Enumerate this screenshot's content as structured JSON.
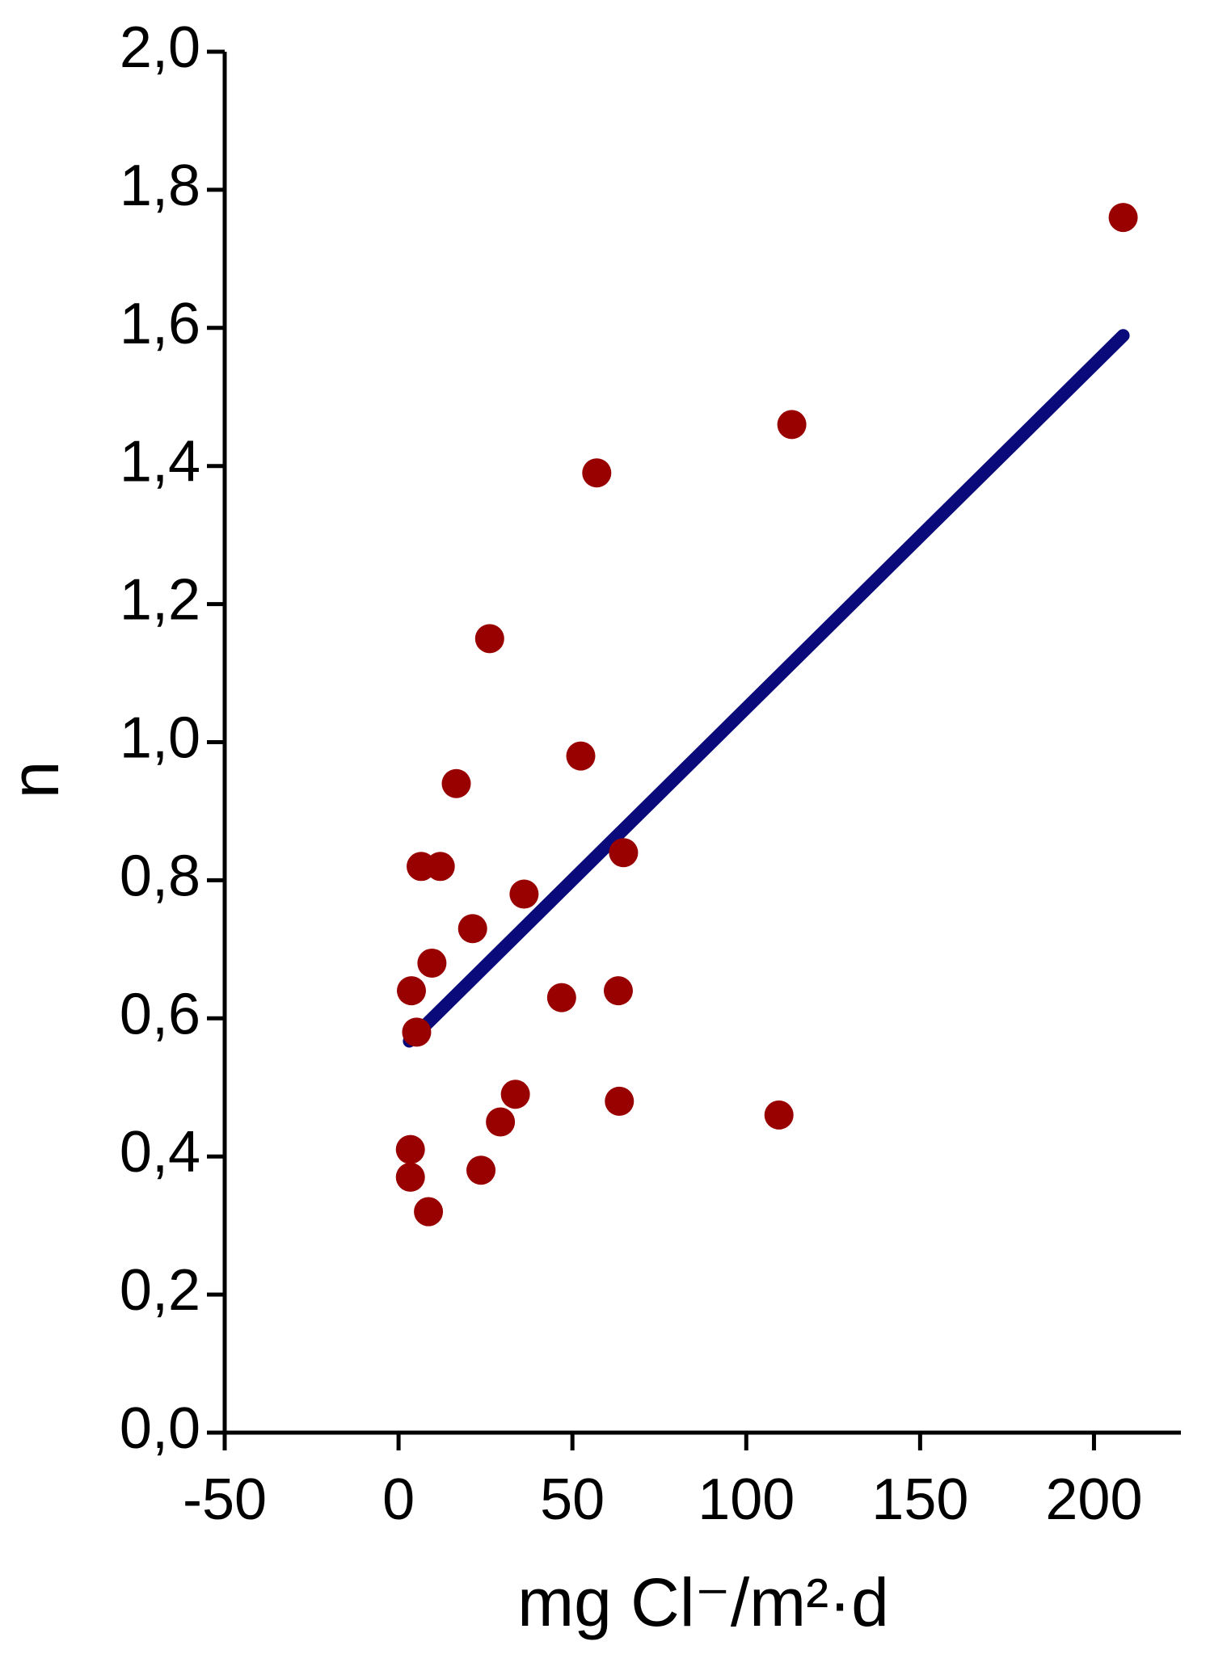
{
  "chart_data": {
    "type": "scatter",
    "xlabel": "mg Cl⁻/m²·d",
    "ylabel": "n",
    "xlim": [
      -50,
      225
    ],
    "ylim": [
      0,
      2.0
    ],
    "xticks": [
      -50,
      0,
      50,
      100,
      150,
      200
    ],
    "yticks": [
      {
        "value": 0,
        "label": "0,0"
      },
      {
        "value": 0.2,
        "label": "0,2"
      },
      {
        "value": 0.4,
        "label": "0,4"
      },
      {
        "value": 0.6,
        "label": "0,6"
      },
      {
        "value": 0.8,
        "label": "0,8"
      },
      {
        "value": 1.0,
        "label": "1,0"
      },
      {
        "value": 1.2,
        "label": "1,2"
      },
      {
        "value": 1.4,
        "label": "1,4"
      },
      {
        "value": 1.6,
        "label": "1,6"
      },
      {
        "value": 1.8,
        "label": "1,8"
      },
      {
        "value": 2.0,
        "label": "2,0"
      }
    ],
    "points": {
      "color": "#990000",
      "x": [
        208.4,
        113.1,
        57.0,
        26.2,
        52.4,
        16.6,
        6.5,
        12.0,
        64.7,
        36.1,
        21.3,
        9.6,
        3.7,
        63.2,
        46.9,
        5.2,
        33.6,
        63.5,
        29.3,
        109.4,
        3.4,
        3.4,
        23.7,
        8.6
      ],
      "values": [
        1.76,
        1.46,
        1.39,
        1.15,
        0.98,
        0.94,
        0.82,
        0.82,
        0.84,
        0.78,
        0.73,
        0.68,
        0.64,
        0.64,
        0.63,
        0.58,
        0.49,
        0.48,
        0.45,
        0.46,
        0.41,
        0.37,
        0.38,
        0.32
      ]
    },
    "fit": {
      "color": "#0a0a7a",
      "x": [
        3.1,
        208.4
      ],
      "values": [
        0.567,
        1.589
      ]
    }
  }
}
